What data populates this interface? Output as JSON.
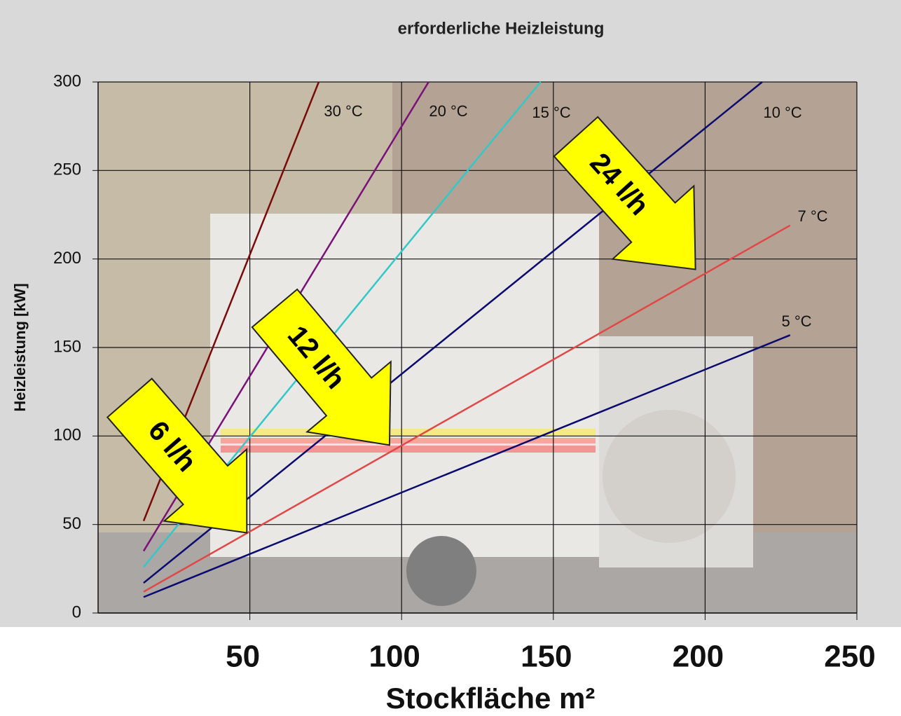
{
  "chart_data": {
    "type": "line",
    "title": "erforderliche Heizleistung",
    "xlabel": "Stockfläche m²",
    "ylabel": "Heizleistung [kW]",
    "xlim": [
      0,
      250
    ],
    "xticks": [
      50,
      100,
      150,
      200,
      250
    ],
    "ylim": [
      0,
      300
    ],
    "yticks": [
      0,
      50,
      100,
      150,
      200,
      250,
      300
    ],
    "grid": true,
    "series": [
      {
        "name": "30 °C",
        "color": "#7a0a0a",
        "x": [
          15,
          72.7
        ],
        "values": [
          52,
          300
        ]
      },
      {
        "name": "20 °C",
        "color": "#7a107a",
        "x": [
          15,
          108.9
        ],
        "values": [
          35,
          300
        ]
      },
      {
        "name": "15 °C",
        "color": "#33c8c8",
        "x": [
          15,
          128,
          145.8
        ],
        "values": [
          26,
          263,
          300
        ]
      },
      {
        "name": "10 °C",
        "color": "#0a0a70",
        "x": [
          15,
          218.8
        ],
        "values": [
          17,
          300
        ]
      },
      {
        "name": "7 °C",
        "color": "#e04848",
        "x": [
          15,
          228
        ],
        "values": [
          12,
          219
        ]
      },
      {
        "name": "5 °C",
        "color": "#0a0a70",
        "x": [
          15,
          228
        ],
        "values": [
          9,
          157
        ]
      }
    ],
    "annotations": [
      "6 l/h",
      "12 l/h",
      "24 l/h"
    ]
  }
}
